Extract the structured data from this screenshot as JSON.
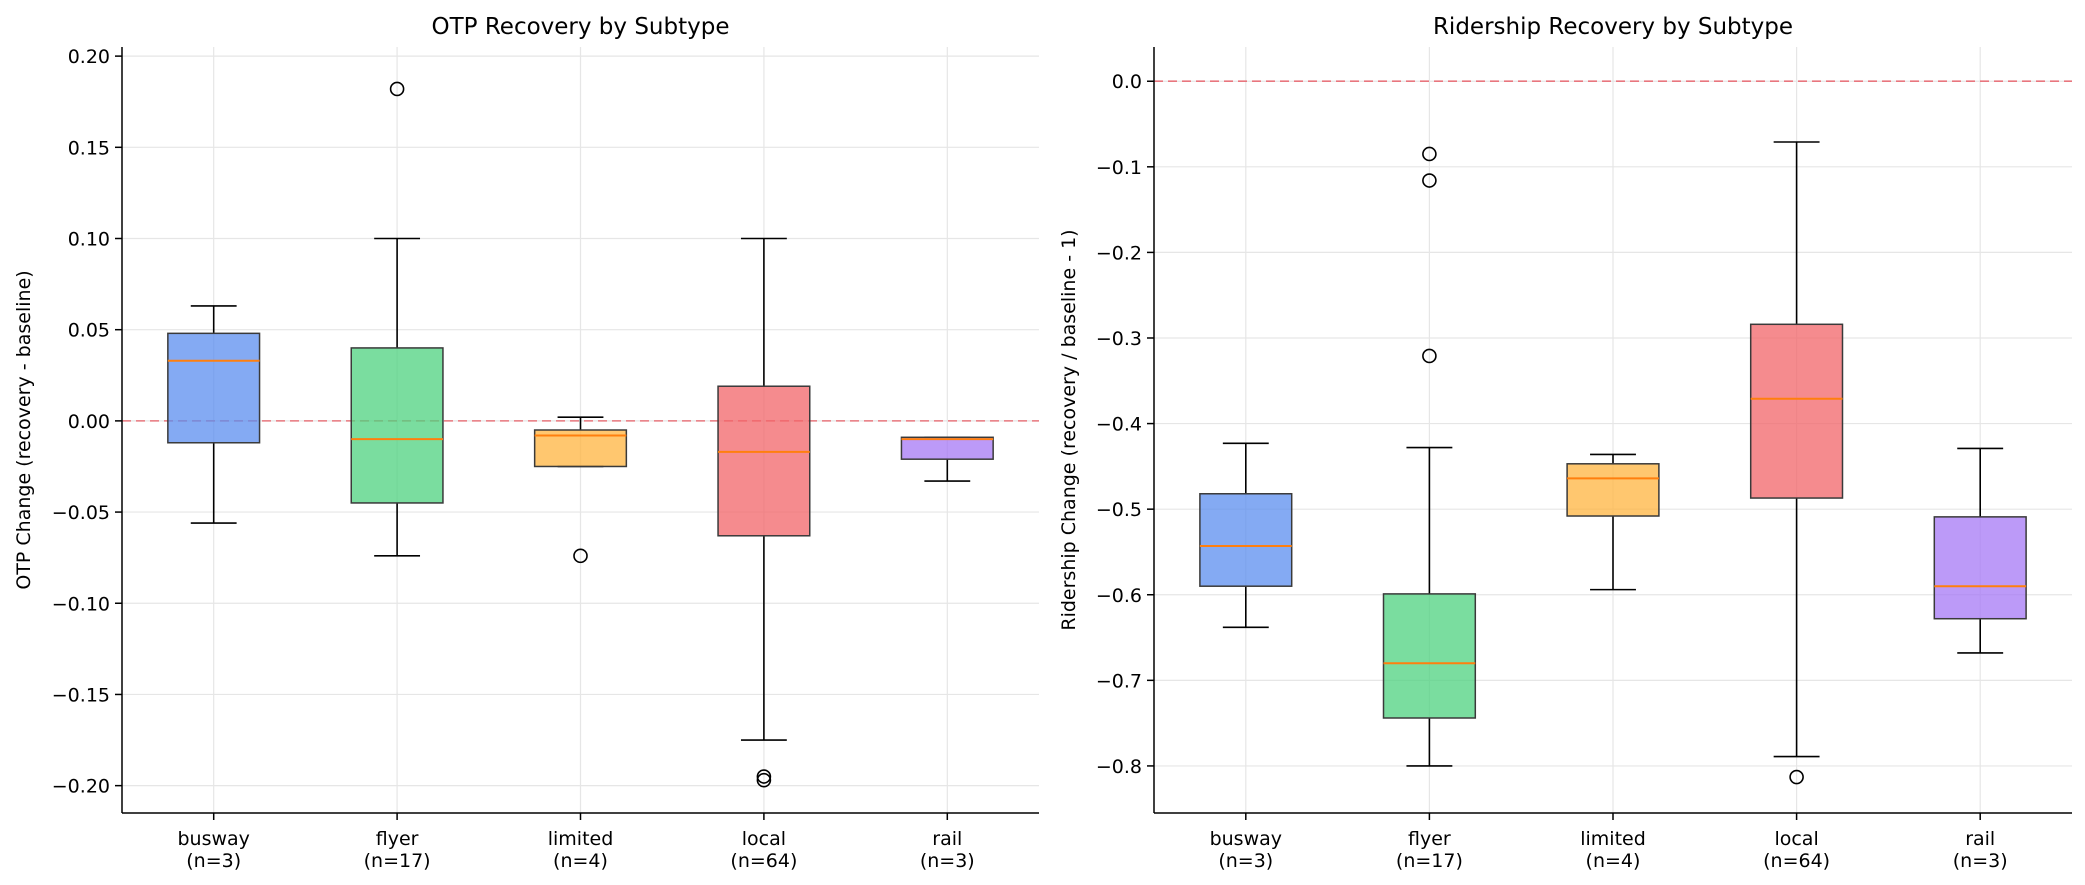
{
  "chart_data": [
    {
      "type": "box",
      "title": "OTP Recovery by Subtype",
      "xlabel": "",
      "ylabel": "OTP Change (recovery - baseline)",
      "ylim": [
        -0.215,
        0.205
      ],
      "yticks": [
        -0.2,
        -0.15,
        -0.1,
        -0.05,
        0.0,
        0.05,
        0.1,
        0.15,
        0.2
      ],
      "ytick_labels": [
        "−0.20",
        "−0.15",
        "−0.10",
        "−0.05",
        "0.00",
        "0.05",
        "0.10",
        "0.15",
        "0.20"
      ],
      "reference_line": 0.0,
      "grid": true,
      "categories": [
        {
          "name": "busway",
          "n_label": "(n=3)",
          "color": "#5b8def",
          "whisker_low": -0.056,
          "q1": -0.012,
          "median": 0.033,
          "q3": 0.048,
          "whisker_high": 0.063,
          "fliers": []
        },
        {
          "name": "flyer",
          "n_label": "(n=17)",
          "color": "#4dd17f",
          "whisker_low": -0.074,
          "q1": -0.045,
          "median": -0.01,
          "q3": 0.04,
          "whisker_high": 0.1,
          "fliers": [
            0.182
          ]
        },
        {
          "name": "limited",
          "n_label": "(n=4)",
          "color": "#ffb43f",
          "whisker_low": -0.025,
          "q1": -0.025,
          "median": -0.008,
          "q3": -0.005,
          "whisker_high": 0.002,
          "fliers": [
            -0.074
          ]
        },
        {
          "name": "local",
          "n_label": "(n=64)",
          "color": "#f16468",
          "whisker_low": -0.175,
          "q1": -0.063,
          "median": -0.017,
          "q3": 0.019,
          "whisker_high": 0.1,
          "fliers": [
            -0.195,
            -0.197
          ]
        },
        {
          "name": "rail",
          "n_label": "(n=3)",
          "color": "#a678f5",
          "whisker_low": -0.033,
          "q1": -0.021,
          "median": -0.01,
          "q3": -0.009,
          "whisker_high": -0.009,
          "fliers": []
        }
      ]
    },
    {
      "type": "box",
      "title": "Ridership Recovery by Subtype",
      "xlabel": "",
      "ylabel": "Ridership Change (recovery / baseline - 1)",
      "ylim": [
        -0.855,
        0.04
      ],
      "yticks": [
        -0.8,
        -0.7,
        -0.6,
        -0.5,
        -0.4,
        -0.3,
        -0.2,
        -0.1,
        0.0
      ],
      "ytick_labels": [
        "−0.8",
        "−0.7",
        "−0.6",
        "−0.5",
        "−0.4",
        "−0.3",
        "−0.2",
        "−0.1",
        "0.0"
      ],
      "reference_line": 0.0,
      "grid": true,
      "categories": [
        {
          "name": "busway",
          "n_label": "(n=3)",
          "color": "#5b8def",
          "whisker_low": -0.638,
          "q1": -0.59,
          "median": -0.543,
          "q3": -0.482,
          "whisker_high": -0.423,
          "fliers": []
        },
        {
          "name": "flyer",
          "n_label": "(n=17)",
          "color": "#4dd17f",
          "whisker_low": -0.8,
          "q1": -0.744,
          "median": -0.68,
          "q3": -0.599,
          "whisker_high": -0.428,
          "fliers": [
            -0.085,
            -0.116,
            -0.321
          ]
        },
        {
          "name": "limited",
          "n_label": "(n=4)",
          "color": "#ffb43f",
          "whisker_low": -0.594,
          "q1": -0.508,
          "median": -0.464,
          "q3": -0.447,
          "whisker_high": -0.436,
          "fliers": []
        },
        {
          "name": "local",
          "n_label": "(n=64)",
          "color": "#f16468",
          "whisker_low": -0.789,
          "q1": -0.487,
          "median": -0.371,
          "q3": -0.284,
          "whisker_high": -0.071,
          "fliers": [
            -0.813
          ]
        },
        {
          "name": "rail",
          "n_label": "(n=3)",
          "color": "#a678f5",
          "whisker_low": -0.668,
          "q1": -0.628,
          "median": -0.59,
          "q3": -0.509,
          "whisker_high": -0.429,
          "fliers": []
        }
      ]
    }
  ]
}
